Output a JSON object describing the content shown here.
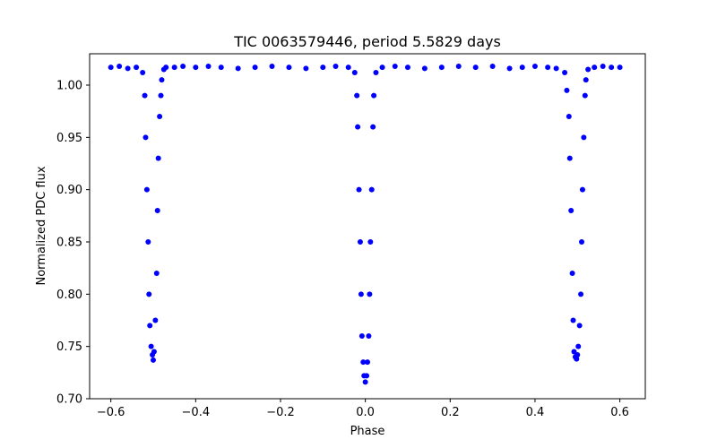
{
  "chart_data": {
    "type": "scatter",
    "title": "TIC 0063579446, period 5.5829 days",
    "xlabel": "Phase",
    "ylabel": "Normalized PDC flux",
    "xlim": [
      -0.65,
      0.66
    ],
    "ylim": [
      0.7,
      1.03
    ],
    "xticks": [
      {
        "value": -0.6,
        "label": "−0.6"
      },
      {
        "value": -0.4,
        "label": "−0.4"
      },
      {
        "value": -0.2,
        "label": "−0.2"
      },
      {
        "value": 0.0,
        "label": "0.0"
      },
      {
        "value": 0.2,
        "label": "0.2"
      },
      {
        "value": 0.4,
        "label": "0.4"
      },
      {
        "value": 0.6,
        "label": "0.6"
      }
    ],
    "yticks": [
      {
        "value": 0.7,
        "label": "0.70"
      },
      {
        "value": 0.75,
        "label": "0.75"
      },
      {
        "value": 0.8,
        "label": "0.80"
      },
      {
        "value": 0.85,
        "label": "0.85"
      },
      {
        "value": 0.9,
        "label": "0.90"
      },
      {
        "value": 0.95,
        "label": "0.95"
      },
      {
        "value": 1.0,
        "label": "1.00"
      }
    ],
    "grid": false,
    "legend": "none",
    "marker_color": "#0000ff",
    "series": [
      {
        "x": [
          -0.6,
          -0.58,
          -0.56,
          -0.54,
          -0.525,
          -0.52,
          -0.518,
          -0.515,
          -0.512,
          -0.51,
          -0.508,
          -0.505,
          -0.502,
          -0.5,
          -0.498,
          -0.495,
          -0.492,
          -0.49,
          -0.488,
          -0.485,
          -0.482,
          -0.48,
          -0.475,
          -0.47,
          -0.45,
          -0.43,
          -0.4,
          -0.37,
          -0.34,
          -0.3,
          -0.26,
          -0.22,
          -0.18,
          -0.14,
          -0.1,
          -0.07,
          -0.04,
          -0.025,
          -0.02,
          -0.018,
          -0.015,
          -0.012,
          -0.01,
          -0.008,
          -0.005,
          -0.003,
          0.0,
          0.003,
          0.005,
          0.008,
          0.01,
          0.012,
          0.015,
          0.018,
          0.02,
          0.025,
          0.04,
          0.07,
          0.1,
          0.14,
          0.18,
          0.22,
          0.26,
          0.3,
          0.34,
          0.37,
          0.4,
          0.43,
          0.45,
          0.47,
          0.475,
          0.48,
          0.482,
          0.485,
          0.488,
          0.49,
          0.492,
          0.495,
          0.498,
          0.5,
          0.502,
          0.505,
          0.508,
          0.51,
          0.512,
          0.515,
          0.518,
          0.52,
          0.525,
          0.54,
          0.56,
          0.58,
          0.6
        ],
        "y": [
          1.017,
          1.018,
          1.016,
          1.017,
          1.012,
          0.99,
          0.95,
          0.9,
          0.85,
          0.8,
          0.77,
          0.75,
          0.742,
          0.737,
          0.745,
          0.775,
          0.82,
          0.88,
          0.93,
          0.97,
          0.99,
          1.005,
          1.015,
          1.017,
          1.017,
          1.018,
          1.017,
          1.018,
          1.017,
          1.016,
          1.017,
          1.018,
          1.017,
          1.016,
          1.017,
          1.018,
          1.017,
          1.012,
          0.99,
          0.96,
          0.9,
          0.85,
          0.8,
          0.76,
          0.735,
          0.722,
          0.716,
          0.722,
          0.735,
          0.76,
          0.8,
          0.85,
          0.9,
          0.96,
          0.99,
          1.012,
          1.017,
          1.018,
          1.017,
          1.016,
          1.017,
          1.018,
          1.017,
          1.018,
          1.016,
          1.017,
          1.018,
          1.017,
          1.016,
          1.012,
          0.995,
          0.97,
          0.93,
          0.88,
          0.82,
          0.775,
          0.745,
          0.74,
          0.738,
          0.742,
          0.75,
          0.77,
          0.8,
          0.85,
          0.9,
          0.95,
          0.99,
          1.005,
          1.015,
          1.017,
          1.018,
          1.017,
          1.017
        ]
      }
    ]
  }
}
